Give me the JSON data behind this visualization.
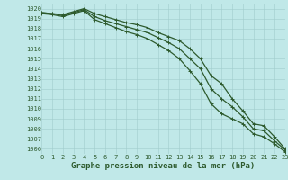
{
  "xlabel": "Graphe pression niveau de la mer (hPa)",
  "ylim": [
    1005.5,
    1020.5
  ],
  "xlim": [
    0,
    23
  ],
  "xticks": [
    0,
    1,
    2,
    3,
    4,
    5,
    6,
    7,
    8,
    9,
    10,
    11,
    12,
    13,
    14,
    15,
    16,
    17,
    18,
    19,
    20,
    21,
    22,
    23
  ],
  "yticks": [
    1006,
    1007,
    1008,
    1009,
    1010,
    1011,
    1012,
    1013,
    1014,
    1015,
    1016,
    1017,
    1018,
    1019,
    1020
  ],
  "bg_color": "#c0e8e8",
  "line_color": "#2d5a2d",
  "grid_color": "#a0cccc",
  "series": {
    "top": [
      1019.6,
      1019.5,
      1019.4,
      1019.7,
      1020.0,
      1019.5,
      1019.2,
      1018.9,
      1018.6,
      1018.4,
      1018.1,
      1017.6,
      1017.2,
      1016.8,
      1016.0,
      1015.0,
      1013.3,
      1012.5,
      1011.0,
      1009.8,
      1008.5,
      1008.3,
      1007.2,
      1006.0
    ],
    "mid": [
      1019.6,
      1019.5,
      1019.3,
      1019.6,
      1019.9,
      1019.2,
      1018.8,
      1018.5,
      1018.2,
      1017.9,
      1017.6,
      1017.1,
      1016.6,
      1016.0,
      1015.0,
      1014.0,
      1012.0,
      1011.0,
      1010.2,
      1009.2,
      1008.0,
      1007.8,
      1006.8,
      1005.9
    ],
    "bottom": [
      1019.5,
      1019.4,
      1019.2,
      1019.5,
      1019.8,
      1018.9,
      1018.5,
      1018.1,
      1017.7,
      1017.4,
      1017.0,
      1016.4,
      1015.8,
      1015.0,
      1013.8,
      1012.5,
      1010.5,
      1009.5,
      1009.0,
      1008.5,
      1007.5,
      1007.2,
      1006.5,
      1005.7
    ]
  },
  "marker": "+",
  "marker_size": 3.5,
  "line_width": 0.9,
  "font_family": "monospace",
  "xlabel_fontsize": 6.5,
  "tick_fontsize": 5.0,
  "tick_color": "#2d5a2d",
  "label_color": "#2d5a2d"
}
